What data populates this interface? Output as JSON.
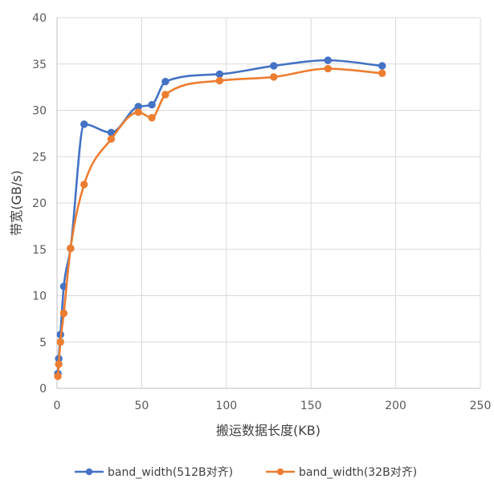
{
  "chart_data": {
    "type": "line",
    "xlabel": "搬运数据长度(KB)",
    "ylabel": "带宽(GB/s)",
    "xlim": [
      0,
      250
    ],
    "ylim": [
      0,
      40
    ],
    "xticks": [
      "0",
      "50",
      "100",
      "150",
      "200",
      "250"
    ],
    "yticks": [
      "0",
      "5",
      "10",
      "15",
      "20",
      "25",
      "30",
      "35",
      "40"
    ],
    "grid": true,
    "legend": "bottom",
    "smooth": true,
    "series": [
      {
        "name": "band_width(512B对齐)",
        "color": "#4472C4",
        "x": [
          0.5,
          1,
          2,
          4,
          8,
          16,
          32,
          48,
          56,
          64,
          96,
          128,
          160,
          192
        ],
        "y": [
          1.6,
          3.2,
          5.8,
          11.0,
          15.1,
          28.5,
          27.6,
          30.4,
          30.6,
          33.1,
          33.9,
          34.8,
          35.4,
          34.8
        ]
      },
      {
        "name": "band_width(32B对齐)",
        "color": "#ED7D31",
        "x": [
          0.5,
          1,
          2,
          4,
          8,
          16,
          32,
          48,
          56,
          64,
          96,
          128,
          160,
          192
        ],
        "y": [
          1.3,
          2.6,
          5.0,
          8.1,
          15.1,
          22.0,
          26.9,
          29.8,
          29.2,
          31.7,
          33.2,
          33.6,
          34.5,
          34.0
        ]
      }
    ]
  }
}
